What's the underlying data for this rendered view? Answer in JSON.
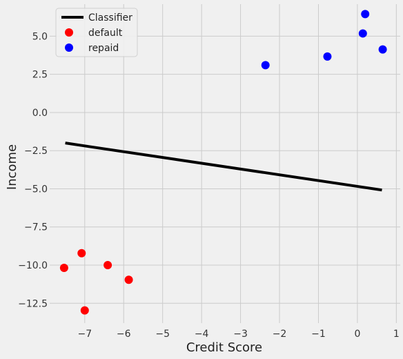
{
  "chart_data": {
    "type": "scatter",
    "title": "",
    "xlabel": "Credit Score",
    "ylabel": "Income",
    "xlim": [
      -7.9,
      1.1
    ],
    "ylim": [
      -13.8,
      7.1
    ],
    "grid": true,
    "legend_position": "top-left",
    "x_ticks": [
      {
        "value": -7,
        "label": "−7"
      },
      {
        "value": -6,
        "label": "−6"
      },
      {
        "value": -5,
        "label": "−5"
      },
      {
        "value": -4,
        "label": "−4"
      },
      {
        "value": -3,
        "label": "−3"
      },
      {
        "value": -2,
        "label": "−2"
      },
      {
        "value": -1,
        "label": "−1"
      },
      {
        "value": 0,
        "label": "0"
      },
      {
        "value": 1,
        "label": "1"
      }
    ],
    "y_ticks": [
      {
        "value": -12.5,
        "label": "−12.5"
      },
      {
        "value": -10.0,
        "label": "−10.0"
      },
      {
        "value": -7.5,
        "label": "−7.5"
      },
      {
        "value": -5.0,
        "label": "−5.0"
      },
      {
        "value": -2.5,
        "label": "−2.5"
      },
      {
        "value": 0.0,
        "label": "0.0"
      },
      {
        "value": 2.5,
        "label": "2.5"
      },
      {
        "value": 5.0,
        "label": "5.0"
      }
    ],
    "series": [
      {
        "name": "Classifier",
        "kind": "line",
        "color": "#000000",
        "x": [
          -7.5,
          0.63
        ],
        "y": [
          -2.0,
          -5.08
        ]
      },
      {
        "name": "default",
        "kind": "scatter",
        "color": "#ff0000",
        "x": [
          -7.08,
          -7.53,
          -6.41,
          -5.87,
          -7.0
        ],
        "y": [
          -9.22,
          -10.18,
          -10.0,
          -10.96,
          -12.97
        ]
      },
      {
        "name": "repaid",
        "kind": "scatter",
        "color": "#0000ff",
        "x": [
          0.2,
          0.14,
          0.65,
          -0.77,
          -2.36
        ],
        "y": [
          6.45,
          5.18,
          4.13,
          3.67,
          3.1
        ]
      }
    ]
  }
}
